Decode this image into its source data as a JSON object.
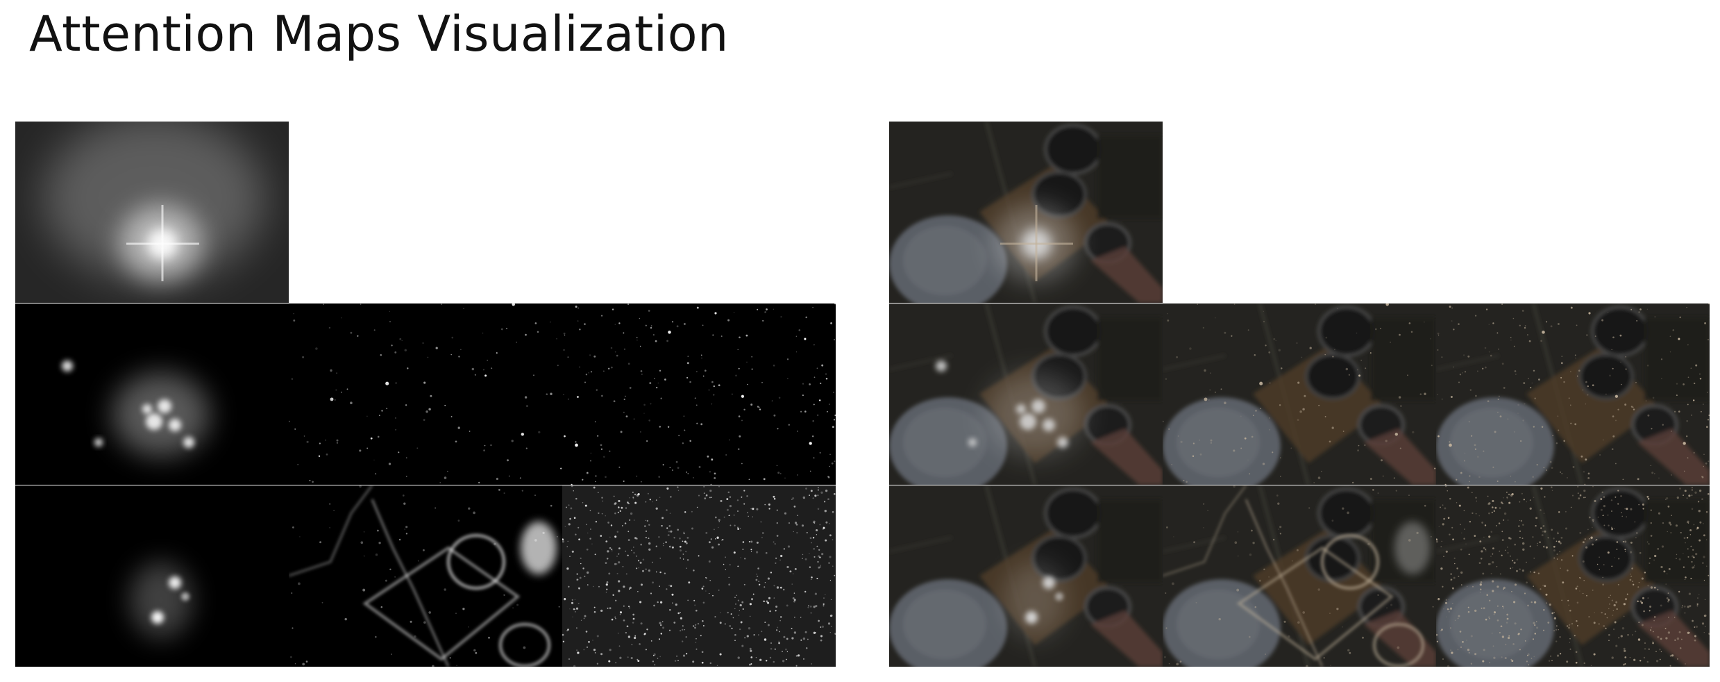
{
  "title": "Attention Maps Visualization",
  "panels": [
    {
      "name": "attention-maps",
      "kind": "raw",
      "rows": [
        {
          "tiles": [
            "blob-soft"
          ]
        },
        {
          "tiles": [
            "blob-mid",
            "speckle-dark",
            "speckle-fine"
          ]
        },
        {
          "tiles": [
            "blob-small",
            "edges",
            "noise-bright"
          ]
        }
      ]
    },
    {
      "name": "overlays",
      "kind": "overlay",
      "rows": [
        {
          "tiles": [
            "blob-soft"
          ]
        },
        {
          "tiles": [
            "blob-mid",
            "speckle-dark",
            "speckle-fine"
          ]
        },
        {
          "tiles": [
            "blob-small",
            "edges",
            "noise-bright"
          ]
        }
      ]
    }
  ],
  "colors": {
    "background": "#ffffff",
    "title": "#111111",
    "attention_base": "#000000",
    "scene_dark": "#2b2a26",
    "scene_warm": "#5a4630",
    "scene_bowl": "#6b7078"
  }
}
